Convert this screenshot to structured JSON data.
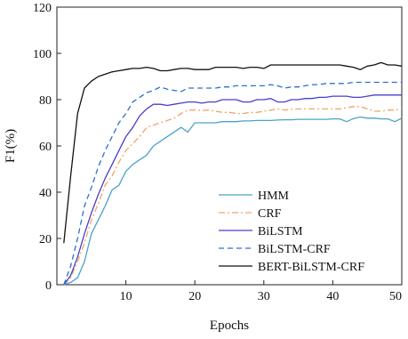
{
  "chart_data": {
    "type": "line",
    "xlabel": "Epochs",
    "ylabel": "F1(%)",
    "xlim": [
      0,
      50
    ],
    "ylim": [
      0,
      120
    ],
    "xticks": [
      10,
      20,
      30,
      40,
      50
    ],
    "yticks": [
      0,
      20,
      40,
      60,
      80,
      100,
      120
    ],
    "grid": false,
    "legend_position": "bottom-right",
    "x": [
      1,
      2,
      3,
      4,
      5,
      6,
      7,
      8,
      9,
      10,
      11,
      12,
      13,
      14,
      15,
      16,
      17,
      18,
      19,
      20,
      21,
      22,
      23,
      24,
      25,
      26,
      27,
      28,
      29,
      30,
      31,
      32,
      33,
      34,
      35,
      36,
      37,
      38,
      39,
      40,
      41,
      42,
      43,
      44,
      45,
      46,
      47,
      48,
      49,
      50
    ],
    "series": [
      {
        "name": "HMM",
        "color": "#4aa3c8",
        "dash": "solid",
        "values": [
          0,
          1,
          3,
          10,
          22,
          28,
          34,
          41,
          43,
          49,
          52,
          54,
          56,
          60,
          62,
          64,
          66,
          68,
          66,
          70,
          70,
          70,
          70,
          70.5,
          70.5,
          70.5,
          70.8,
          70.8,
          71,
          71,
          71,
          71.2,
          71.3,
          71.3,
          71.5,
          71.5,
          71.5,
          71.5,
          71.5,
          71.7,
          71.7,
          70.5,
          71.8,
          72.5,
          72,
          72,
          71.7,
          71.7,
          70.5,
          72
        ]
      },
      {
        "name": "CRF",
        "color": "#f0a46a",
        "dash": "dashdot",
        "values": [
          0,
          3,
          10,
          18,
          28,
          35,
          43,
          47,
          53,
          58,
          61,
          64,
          68,
          69,
          70,
          71,
          72,
          74,
          75.5,
          75.5,
          75.3,
          75.5,
          75,
          74.5,
          74.5,
          74,
          74,
          74.5,
          74.5,
          75,
          75.5,
          76,
          75.5,
          75.8,
          76,
          76,
          76,
          76,
          76,
          76,
          76,
          76.5,
          77,
          77,
          76,
          75,
          75,
          75.5,
          75.5,
          76
        ]
      },
      {
        "name": "BiLSTM",
        "color": "#4a3fc9",
        "dash": "solid",
        "values": [
          0,
          4,
          12,
          22,
          31,
          39,
          46,
          52,
          58,
          64,
          68,
          73,
          76,
          78,
          78,
          77.5,
          78,
          78.5,
          79,
          79,
          78.5,
          79,
          79,
          80,
          80,
          80,
          79,
          79,
          80,
          80,
          80.5,
          79,
          79,
          80,
          80,
          80.5,
          80.5,
          81,
          81,
          81.5,
          81.5,
          81.5,
          81,
          81,
          81.5,
          82,
          82,
          82,
          82,
          82
        ]
      },
      {
        "name": "BiLSTM-CRF",
        "color": "#2b6fd1",
        "dash": "dashed",
        "values": [
          0,
          8,
          20,
          34,
          42,
          51,
          58,
          64,
          70,
          74,
          79,
          81,
          83,
          84,
          85.5,
          84.5,
          84,
          83.5,
          85,
          85,
          85,
          85,
          85,
          85.5,
          85.5,
          86,
          86,
          86,
          86,
          86,
          86.5,
          86,
          85,
          85.5,
          85.5,
          86,
          86.5,
          86.5,
          87,
          87,
          87,
          87,
          87.5,
          87.5,
          87.5,
          87.5,
          87.5,
          87.5,
          87.5,
          87.5
        ]
      },
      {
        "name": "BERT-BiLSTM-CRF",
        "color": "#111111",
        "dash": "solid",
        "values": [
          18,
          47,
          74,
          85,
          88,
          90,
          91,
          92,
          92.5,
          93,
          93.5,
          93.5,
          94,
          93.5,
          92.5,
          92.5,
          93,
          93.5,
          93.5,
          93,
          93,
          93,
          94,
          94,
          94,
          94,
          93.5,
          94,
          94,
          93.5,
          95,
          95,
          95,
          95,
          95,
          95,
          95,
          95,
          95,
          95,
          95,
          94.5,
          94,
          93,
          94.5,
          95,
          96,
          95,
          95,
          94.5
        ]
      }
    ]
  }
}
